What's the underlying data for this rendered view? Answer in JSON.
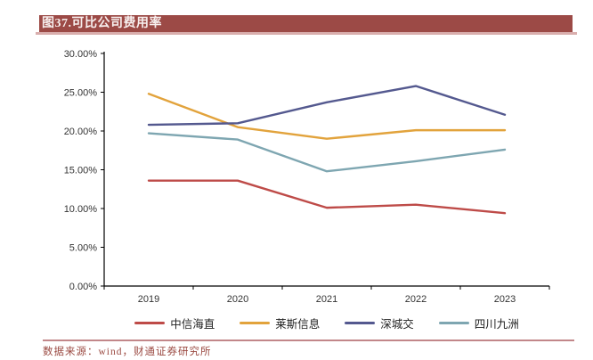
{
  "title": {
    "text": "图37.可比公司费用率"
  },
  "footer": {
    "text": "数据来源：wind，财通证券研究所"
  },
  "colors": {
    "title_bar_bg": "#9C4A46",
    "title_bar_text": "#F7EFEE",
    "title_underline": "#D9AEAD",
    "footer_line": "#C2878A",
    "footer_text": "#9B4A42",
    "axis": "#000000",
    "axis_label": "#333333"
  },
  "chart_data": {
    "type": "line",
    "title": "图37.可比公司费用率",
    "categories": [
      "2019",
      "2020",
      "2021",
      "2022",
      "2023"
    ],
    "series": [
      {
        "name": "中信海直",
        "color": "#BE4B48",
        "values": [
          13.6,
          13.6,
          10.1,
          10.5,
          9.4
        ]
      },
      {
        "name": "莱斯信息",
        "color": "#E2A33C",
        "values": [
          24.8,
          20.5,
          19.0,
          20.1,
          20.1
        ]
      },
      {
        "name": "深城交",
        "color": "#54598F",
        "values": [
          20.8,
          21.0,
          23.7,
          25.8,
          22.1
        ]
      },
      {
        "name": "四川九洲",
        "color": "#7EA6B1",
        "values": [
          19.7,
          18.9,
          14.8,
          16.1,
          17.6
        ]
      }
    ],
    "xlabel": "",
    "ylabel": "",
    "ylim": [
      0,
      30
    ],
    "ytick_step": 5,
    "ytick_labels": [
      "0.00%",
      "5.00%",
      "10.00%",
      "15.00%",
      "20.00%",
      "25.00%",
      "30.00%"
    ],
    "grid": false,
    "legend_position": "bottom"
  }
}
